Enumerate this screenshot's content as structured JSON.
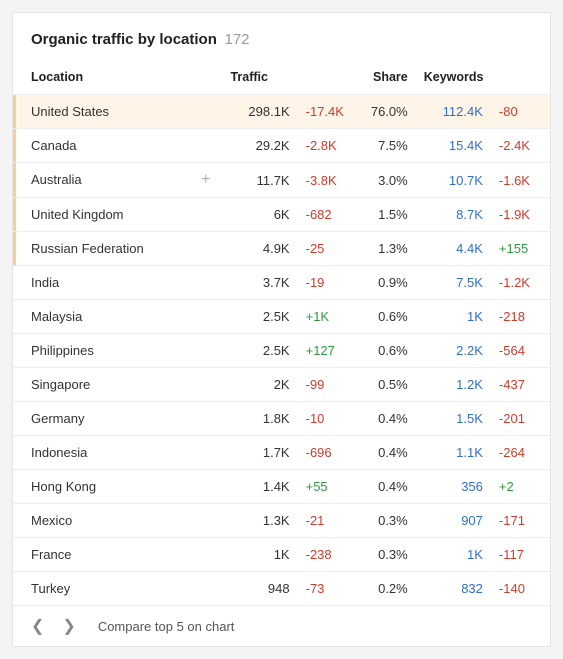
{
  "header": {
    "title": "Organic traffic by location",
    "count": "172"
  },
  "columns": {
    "location": "Location",
    "traffic": "Traffic",
    "share": "Share",
    "keywords": "Keywords"
  },
  "rows": [
    {
      "location": "United States",
      "traffic": "298.1K",
      "traffic_delta": "-17.4K",
      "traffic_dir": "neg",
      "share": "76.0%",
      "keywords": "112.4K",
      "keywords_delta": "-80",
      "keywords_dir": "neg",
      "highlight": true,
      "bar": true,
      "plus": false
    },
    {
      "location": "Canada",
      "traffic": "29.2K",
      "traffic_delta": "-2.8K",
      "traffic_dir": "neg",
      "share": "7.5%",
      "keywords": "15.4K",
      "keywords_delta": "-2.4K",
      "keywords_dir": "neg",
      "highlight": false,
      "bar": true,
      "plus": false
    },
    {
      "location": "Australia",
      "traffic": "11.7K",
      "traffic_delta": "-3.8K",
      "traffic_dir": "neg",
      "share": "3.0%",
      "keywords": "10.7K",
      "keywords_delta": "-1.6K",
      "keywords_dir": "neg",
      "highlight": false,
      "bar": true,
      "plus": true
    },
    {
      "location": "United Kingdom",
      "traffic": "6K",
      "traffic_delta": "-682",
      "traffic_dir": "neg",
      "share": "1.5%",
      "keywords": "8.7K",
      "keywords_delta": "-1.9K",
      "keywords_dir": "neg",
      "highlight": false,
      "bar": true,
      "plus": false
    },
    {
      "location": "Russian Federation",
      "traffic": "4.9K",
      "traffic_delta": "-25",
      "traffic_dir": "neg",
      "share": "1.3%",
      "keywords": "4.4K",
      "keywords_delta": "+155",
      "keywords_dir": "pos",
      "highlight": false,
      "bar": true,
      "plus": false
    },
    {
      "location": "India",
      "traffic": "3.7K",
      "traffic_delta": "-19",
      "traffic_dir": "neg",
      "share": "0.9%",
      "keywords": "7.5K",
      "keywords_delta": "-1.2K",
      "keywords_dir": "neg",
      "highlight": false,
      "bar": false,
      "plus": false
    },
    {
      "location": "Malaysia",
      "traffic": "2.5K",
      "traffic_delta": "+1K",
      "traffic_dir": "pos",
      "share": "0.6%",
      "keywords": "1K",
      "keywords_delta": "-218",
      "keywords_dir": "neg",
      "highlight": false,
      "bar": false,
      "plus": false
    },
    {
      "location": "Philippines",
      "traffic": "2.5K",
      "traffic_delta": "+127",
      "traffic_dir": "pos",
      "share": "0.6%",
      "keywords": "2.2K",
      "keywords_delta": "-564",
      "keywords_dir": "neg",
      "highlight": false,
      "bar": false,
      "plus": false
    },
    {
      "location": "Singapore",
      "traffic": "2K",
      "traffic_delta": "-99",
      "traffic_dir": "neg",
      "share": "0.5%",
      "keywords": "1.2K",
      "keywords_delta": "-437",
      "keywords_dir": "neg",
      "highlight": false,
      "bar": false,
      "plus": false
    },
    {
      "location": "Germany",
      "traffic": "1.8K",
      "traffic_delta": "-10",
      "traffic_dir": "neg",
      "share": "0.4%",
      "keywords": "1.5K",
      "keywords_delta": "-201",
      "keywords_dir": "neg",
      "highlight": false,
      "bar": false,
      "plus": false
    },
    {
      "location": "Indonesia",
      "traffic": "1.7K",
      "traffic_delta": "-696",
      "traffic_dir": "neg",
      "share": "0.4%",
      "keywords": "1.1K",
      "keywords_delta": "-264",
      "keywords_dir": "neg",
      "highlight": false,
      "bar": false,
      "plus": false
    },
    {
      "location": "Hong Kong",
      "traffic": "1.4K",
      "traffic_delta": "+55",
      "traffic_dir": "pos",
      "share": "0.4%",
      "keywords": "356",
      "keywords_delta": "+2",
      "keywords_dir": "pos",
      "highlight": false,
      "bar": false,
      "plus": false
    },
    {
      "location": "Mexico",
      "traffic": "1.3K",
      "traffic_delta": "-21",
      "traffic_dir": "neg",
      "share": "0.3%",
      "keywords": "907",
      "keywords_delta": "-171",
      "keywords_dir": "neg",
      "highlight": false,
      "bar": false,
      "plus": false
    },
    {
      "location": "France",
      "traffic": "1K",
      "traffic_delta": "-238",
      "traffic_dir": "neg",
      "share": "0.3%",
      "keywords": "1K",
      "keywords_delta": "-117",
      "keywords_dir": "neg",
      "highlight": false,
      "bar": false,
      "plus": false
    },
    {
      "location": "Turkey",
      "traffic": "948",
      "traffic_delta": "-73",
      "traffic_dir": "neg",
      "share": "0.2%",
      "keywords": "832",
      "keywords_delta": "-140",
      "keywords_dir": "neg",
      "highlight": false,
      "bar": false,
      "plus": false
    }
  ],
  "footer": {
    "compare_text": "Compare top 5 on chart"
  },
  "colors": {
    "neg": "#d13b2a",
    "pos": "#2e9b3f",
    "link": "#2f6fd0",
    "highlight_bg": "#fff4e8",
    "bar": "#ffcb99"
  }
}
